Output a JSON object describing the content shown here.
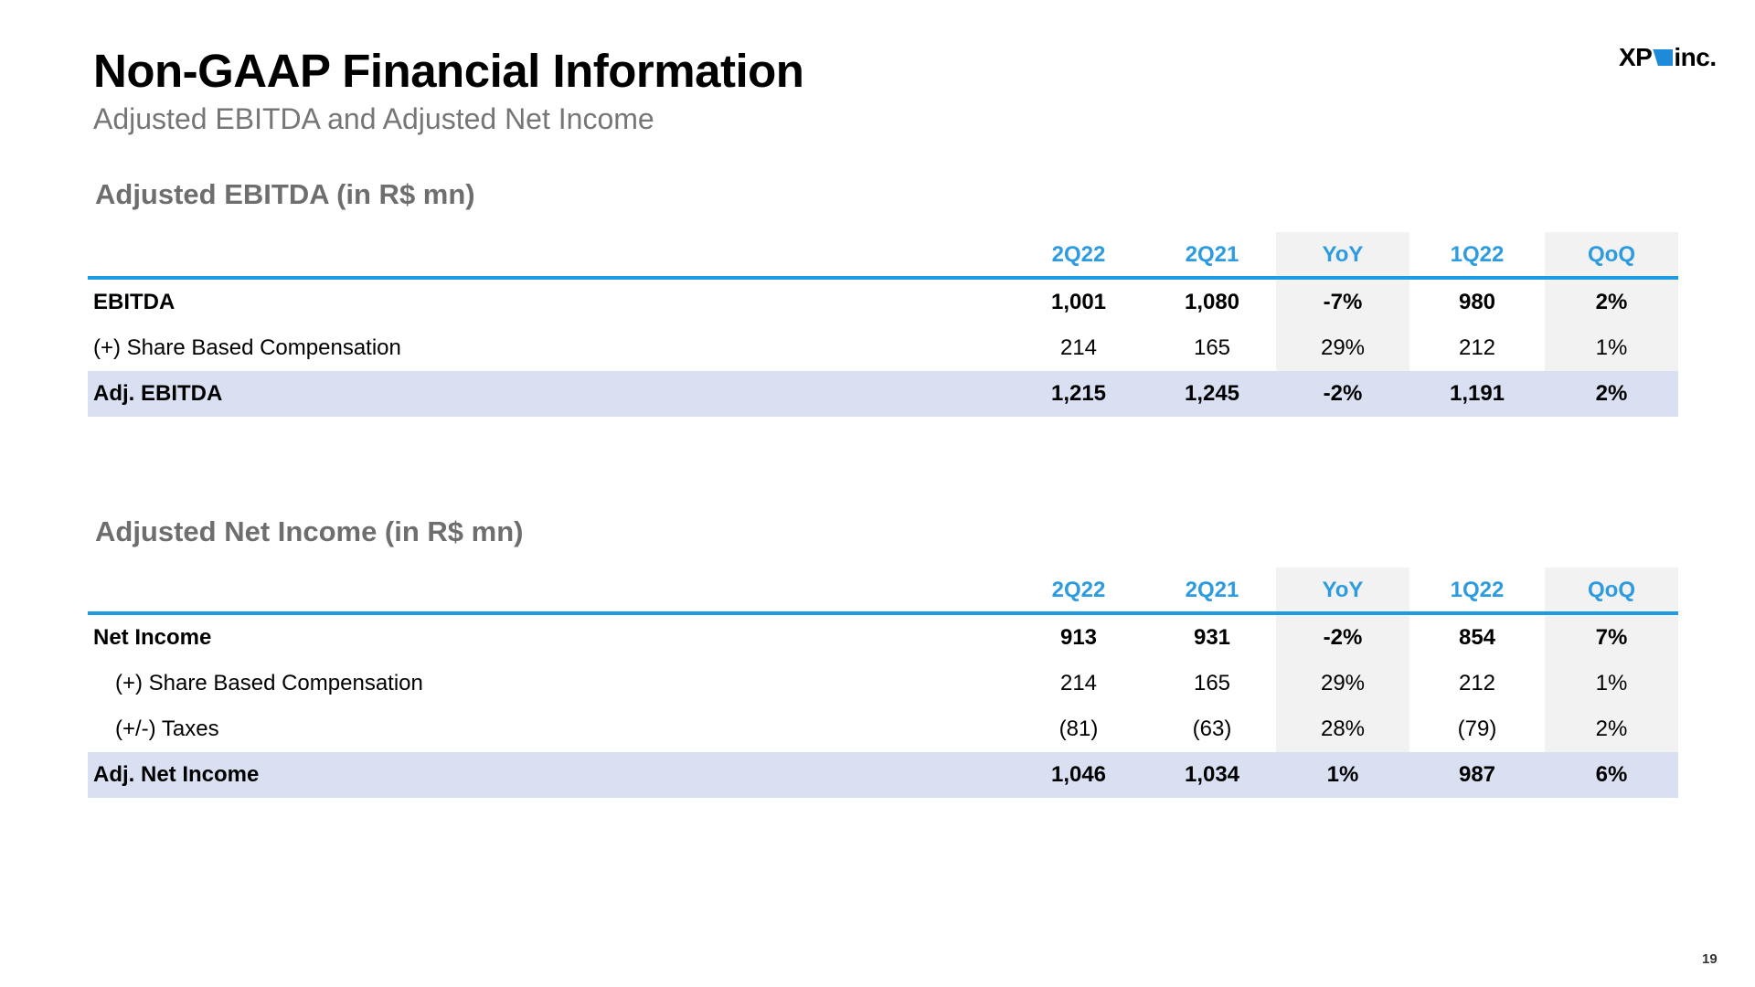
{
  "header": {
    "title": "Non-GAAP Financial Information",
    "subtitle": "Adjusted EBITDA and Adjusted Net Income",
    "logo_text_left": "XP",
    "logo_text_right": "inc."
  },
  "colors": {
    "accent": "#1e9ce2",
    "header_text": "#2d9be0",
    "highlight_row": "#d9e0f1",
    "shaded_column": "#f2f2f2",
    "section_title": "#6e6e6e"
  },
  "ebitda_table": {
    "section_title": "Adjusted EBITDA (in R$ mn)",
    "columns": [
      "2Q22",
      "2Q21",
      "YoY",
      "1Q22",
      "QoQ"
    ],
    "rows": [
      {
        "label": "EBITDA",
        "values": [
          "1,001",
          "1,080",
          "-7%",
          "980",
          "2%"
        ],
        "bold": true
      },
      {
        "label": "(+) Share Based Compensation",
        "values": [
          "214",
          "165",
          "29%",
          "212",
          "1%"
        ],
        "bold": false
      },
      {
        "label": "Adj. EBITDA",
        "values": [
          "1,215",
          "1,245",
          "-2%",
          "1,191",
          "2%"
        ],
        "bold": true
      }
    ]
  },
  "net_income_table": {
    "section_title": "Adjusted Net Income (in R$ mn)",
    "columns": [
      "2Q22",
      "2Q21",
      "YoY",
      "1Q22",
      "QoQ"
    ],
    "rows": [
      {
        "label": "Net Income",
        "values": [
          "913",
          "931",
          "-2%",
          "854",
          "7%"
        ],
        "bold": true
      },
      {
        "label": "(+) Share Based Compensation",
        "values": [
          "214",
          "165",
          "29%",
          "212",
          "1%"
        ],
        "bold": false
      },
      {
        "label": "(+/-) Taxes",
        "values": [
          "(81)",
          "(63)",
          "28%",
          "(79)",
          "2%"
        ],
        "bold": false
      },
      {
        "label": "Adj. Net Income",
        "values": [
          "1,046",
          "1,034",
          "1%",
          "987",
          "6%"
        ],
        "bold": true
      }
    ]
  },
  "footer": {
    "page_number": "19"
  }
}
